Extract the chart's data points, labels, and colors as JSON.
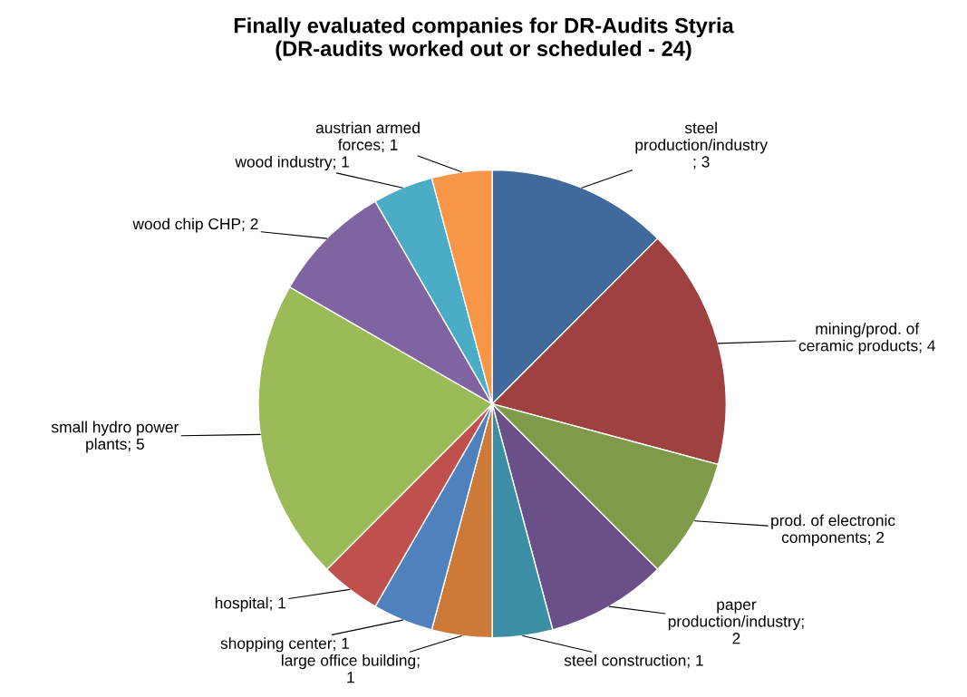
{
  "chart_data": {
    "type": "pie",
    "title": "Finally evaluated companies for DR-Audits Styria\n(DR-audits worked out or scheduled - 24)",
    "categories": [
      "steel\nproduction/industry\n; 3",
      "mining/prod. of\nceramic products; 4",
      "prod. of electronic\ncomponents; 2",
      "paper\nproduction/industry;\n2",
      "steel construction; 1",
      "large office building;\n1",
      "shopping center; 1",
      "hospital; 1",
      "small hydro power\nplants; 5",
      "wood chip CHP; 2",
      "wood industry; 1",
      "austrian armed\nforces; 1"
    ],
    "values": [
      3,
      4,
      2,
      2,
      1,
      1,
      1,
      1,
      5,
      2,
      1,
      1
    ],
    "colors": [
      "#3f6a9b",
      "#9e4140",
      "#7f9b4a",
      "#6a4f88",
      "#3b8ea3",
      "#cd7a38",
      "#4f81bd",
      "#c0504d",
      "#9bbb59",
      "#8064a2",
      "#4bacc6",
      "#f79646"
    ]
  }
}
